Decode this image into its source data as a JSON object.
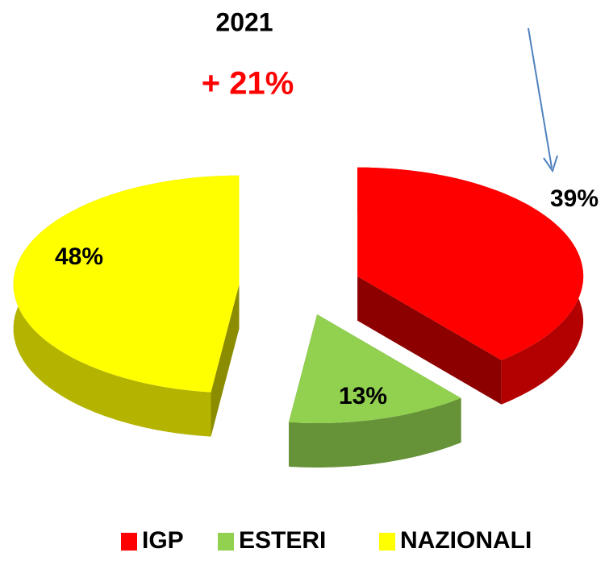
{
  "chart_data": {
    "type": "pie",
    "title": "2021",
    "subtitle": "+ 21%",
    "categories": [
      "IGP",
      "ESTERI",
      "NAZIONALI"
    ],
    "values": [
      39,
      13,
      48
    ],
    "value_labels": [
      "39%",
      "13%",
      "48%"
    ],
    "colors": [
      "#ff0000",
      "#92d050",
      "#ffff00"
    ],
    "subtitle_color": "#ff0000",
    "legend": "bottom"
  }
}
